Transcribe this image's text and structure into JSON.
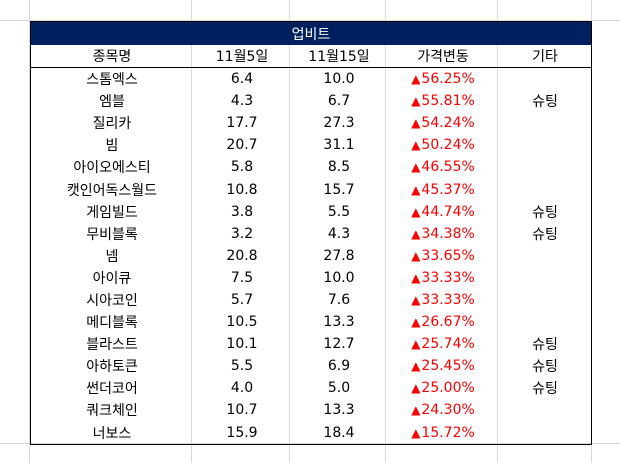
{
  "table": {
    "title": "업비트",
    "headers": [
      "종목명",
      "11월5일",
      "11월15일",
      "가격변동",
      "기타"
    ],
    "rows": [
      {
        "name": "스톰엑스",
        "nov5": "6.4",
        "nov15": "10.0",
        "change": "56.25%",
        "note": ""
      },
      {
        "name": "엠블",
        "nov5": "4.3",
        "nov15": "6.7",
        "change": "55.81%",
        "note": "슈팅"
      },
      {
        "name": "질리카",
        "nov5": "17.7",
        "nov15": "27.3",
        "change": "54.24%",
        "note": ""
      },
      {
        "name": "빔",
        "nov5": "20.7",
        "nov15": "31.1",
        "change": "50.24%",
        "note": ""
      },
      {
        "name": "아이오에스티",
        "nov5": "5.8",
        "nov15": "8.5",
        "change": "46.55%",
        "note": ""
      },
      {
        "name": "캣인어독스월드",
        "nov5": "10.8",
        "nov15": "15.7",
        "change": "45.37%",
        "note": ""
      },
      {
        "name": "게임빌드",
        "nov5": "3.8",
        "nov15": "5.5",
        "change": "44.74%",
        "note": "슈팅"
      },
      {
        "name": "무비블록",
        "nov5": "3.2",
        "nov15": "4.3",
        "change": "34.38%",
        "note": "슈팅"
      },
      {
        "name": "넴",
        "nov5": "20.8",
        "nov15": "27.8",
        "change": "33.65%",
        "note": ""
      },
      {
        "name": "아이큐",
        "nov5": "7.5",
        "nov15": "10.0",
        "change": "33.33%",
        "note": ""
      },
      {
        "name": "시아코인",
        "nov5": "5.7",
        "nov15": "7.6",
        "change": "33.33%",
        "note": ""
      },
      {
        "name": "메디블록",
        "nov5": "10.5",
        "nov15": "13.3",
        "change": "26.67%",
        "note": ""
      },
      {
        "name": "블라스트",
        "nov5": "10.1",
        "nov15": "12.7",
        "change": "25.74%",
        "note": "슈팅"
      },
      {
        "name": "아하토큰",
        "nov5": "5.5",
        "nov15": "6.9",
        "change": "25.45%",
        "note": "슈팅"
      },
      {
        "name": "썬더코어",
        "nov5": "4.0",
        "nov15": "5.0",
        "change": "25.00%",
        "note": "슈팅"
      },
      {
        "name": "쿼크체인",
        "nov5": "10.7",
        "nov15": "13.3",
        "change": "24.30%",
        "note": ""
      },
      {
        "name": "너보스",
        "nov5": "15.9",
        "nov15": "18.4",
        "change": "15.72%",
        "note": ""
      }
    ],
    "up_glyph": "▲",
    "colors": {
      "title_bg": "#002060",
      "title_fg": "#ffffff",
      "up": "#ff0000",
      "grid": "#d9d9d9"
    }
  }
}
